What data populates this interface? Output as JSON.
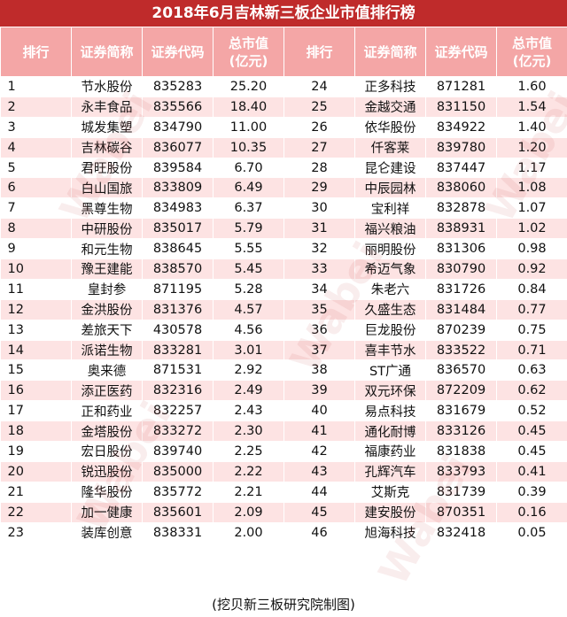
{
  "title": "2018年6月吉林新三板企业市值排行榜",
  "header": {
    "rank": "排行",
    "name": "证券简称",
    "code": "证券代码",
    "value_line1": "总市值",
    "value_line2": "(亿元)"
  },
  "rows": [
    {
      "left": {
        "rank": "1",
        "name": "节水股份",
        "code": "835283",
        "value": "25.20"
      },
      "right": {
        "rank": "24",
        "name": "正多科技",
        "code": "871281",
        "value": "1.60"
      }
    },
    {
      "left": {
        "rank": "2",
        "name": "永丰食品",
        "code": "835566",
        "value": "18.40"
      },
      "right": {
        "rank": "25",
        "name": "金越交通",
        "code": "831150",
        "value": "1.54"
      }
    },
    {
      "left": {
        "rank": "3",
        "name": "城发集塑",
        "code": "834790",
        "value": "11.00"
      },
      "right": {
        "rank": "26",
        "name": "依华股份",
        "code": "834922",
        "value": "1.40"
      }
    },
    {
      "left": {
        "rank": "4",
        "name": "吉林碳谷",
        "code": "836077",
        "value": "10.35"
      },
      "right": {
        "rank": "27",
        "name": "仟客莱",
        "code": "839780",
        "value": "1.20"
      }
    },
    {
      "left": {
        "rank": "5",
        "name": "君旺股份",
        "code": "839584",
        "value": "6.70"
      },
      "right": {
        "rank": "28",
        "name": "昆仑建设",
        "code": "837447",
        "value": "1.17"
      }
    },
    {
      "left": {
        "rank": "6",
        "name": "白山国旅",
        "code": "833809",
        "value": "6.49"
      },
      "right": {
        "rank": "29",
        "name": "中辰园林",
        "code": "838060",
        "value": "1.08"
      }
    },
    {
      "left": {
        "rank": "7",
        "name": "黑尊生物",
        "code": "834983",
        "value": "6.37"
      },
      "right": {
        "rank": "30",
        "name": "宝利祥",
        "code": "832878",
        "value": "1.07"
      }
    },
    {
      "left": {
        "rank": "8",
        "name": "中研股份",
        "code": "835017",
        "value": "5.79"
      },
      "right": {
        "rank": "31",
        "name": "福兴粮油",
        "code": "838931",
        "value": "1.02"
      }
    },
    {
      "left": {
        "rank": "9",
        "name": "和元生物",
        "code": "838645",
        "value": "5.55"
      },
      "right": {
        "rank": "32",
        "name": "丽明股份",
        "code": "831306",
        "value": "0.98"
      }
    },
    {
      "left": {
        "rank": "10",
        "name": "豫王建能",
        "code": "838570",
        "value": "5.45"
      },
      "right": {
        "rank": "33",
        "name": "希迈气象",
        "code": "830790",
        "value": "0.92"
      }
    },
    {
      "left": {
        "rank": "11",
        "name": "皇封参",
        "code": "871195",
        "value": "5.28"
      },
      "right": {
        "rank": "34",
        "name": "朱老六",
        "code": "831726",
        "value": "0.84"
      }
    },
    {
      "left": {
        "rank": "12",
        "name": "金洪股份",
        "code": "831376",
        "value": "4.57"
      },
      "right": {
        "rank": "35",
        "name": "久盛生态",
        "code": "831484",
        "value": "0.77"
      }
    },
    {
      "left": {
        "rank": "13",
        "name": "差旅天下",
        "code": "430578",
        "value": "4.56"
      },
      "right": {
        "rank": "36",
        "name": "巨龙股份",
        "code": "870239",
        "value": "0.75"
      }
    },
    {
      "left": {
        "rank": "14",
        "name": "派诺生物",
        "code": "833281",
        "value": "3.01"
      },
      "right": {
        "rank": "37",
        "name": "喜丰节水",
        "code": "833522",
        "value": "0.71"
      }
    },
    {
      "left": {
        "rank": "15",
        "name": "奥来德",
        "code": "871531",
        "value": "2.92"
      },
      "right": {
        "rank": "38",
        "name": "ST广通",
        "code": "836570",
        "value": "0.63"
      }
    },
    {
      "left": {
        "rank": "16",
        "name": "添正医药",
        "code": "832316",
        "value": "2.49"
      },
      "right": {
        "rank": "39",
        "name": "双元环保",
        "code": "872209",
        "value": "0.62"
      }
    },
    {
      "left": {
        "rank": "17",
        "name": "正和药业",
        "code": "832257",
        "value": "2.43"
      },
      "right": {
        "rank": "40",
        "name": "易点科技",
        "code": "831679",
        "value": "0.52"
      }
    },
    {
      "left": {
        "rank": "18",
        "name": "金塔股份",
        "code": "833272",
        "value": "2.30"
      },
      "right": {
        "rank": "41",
        "name": "通化耐博",
        "code": "833126",
        "value": "0.45"
      }
    },
    {
      "left": {
        "rank": "19",
        "name": "宏日股份",
        "code": "839740",
        "value": "2.25"
      },
      "right": {
        "rank": "42",
        "name": "福康药业",
        "code": "831838",
        "value": "0.45"
      }
    },
    {
      "left": {
        "rank": "20",
        "name": "锐迅股份",
        "code": "835000",
        "value": "2.22"
      },
      "right": {
        "rank": "43",
        "name": "孔辉汽车",
        "code": "833793",
        "value": "0.41"
      }
    },
    {
      "left": {
        "rank": "21",
        "name": "隆华股份",
        "code": "835772",
        "value": "2.21"
      },
      "right": {
        "rank": "44",
        "name": "艾斯克",
        "code": "831739",
        "value": "0.39"
      }
    },
    {
      "left": {
        "rank": "22",
        "name": "加一健康",
        "code": "835601",
        "value": "2.09"
      },
      "right": {
        "rank": "45",
        "name": "建安股份",
        "code": "870351",
        "value": "0.16"
      }
    },
    {
      "left": {
        "rank": "23",
        "name": "装库创意",
        "code": "838331",
        "value": "2.00"
      },
      "right": {
        "rank": "46",
        "name": "旭海科技",
        "code": "832418",
        "value": "0.05"
      }
    }
  ],
  "footer": "(挖贝新三板研究院制图)",
  "watermark": "Wabei"
}
